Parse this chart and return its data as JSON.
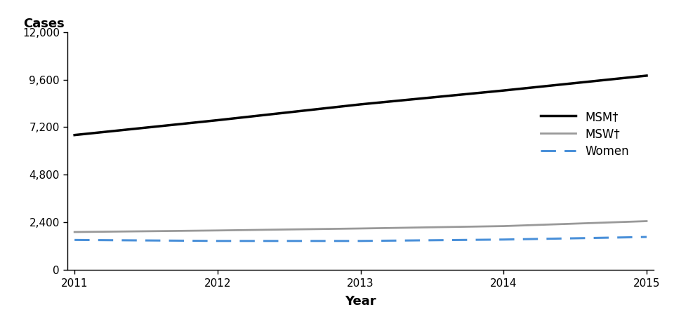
{
  "years": [
    2011,
    2012,
    2013,
    2014,
    2015
  ],
  "msm": [
    6800,
    7550,
    8350,
    9050,
    9800
  ],
  "msw": [
    1900,
    1980,
    2080,
    2200,
    2450
  ],
  "women": [
    1500,
    1450,
    1450,
    1520,
    1650
  ],
  "msm_color": "#000000",
  "msw_color": "#999999",
  "women_color": "#4a90d9",
  "xlabel": "Year",
  "ylabel": "Cases",
  "ylim": [
    0,
    12000
  ],
  "yticks": [
    0,
    2400,
    4800,
    7200,
    9600,
    12000
  ],
  "ytick_labels": [
    "0",
    "2,400",
    "4,800",
    "7,200",
    "9,600",
    "12,000"
  ],
  "xticks": [
    2011,
    2012,
    2013,
    2014,
    2015
  ],
  "legend_labels": [
    "MSM†",
    "MSW†",
    "Women"
  ],
  "background_color": "#ffffff",
  "msm_lw": 2.5,
  "msw_lw": 2.0,
  "women_lw": 2.2
}
